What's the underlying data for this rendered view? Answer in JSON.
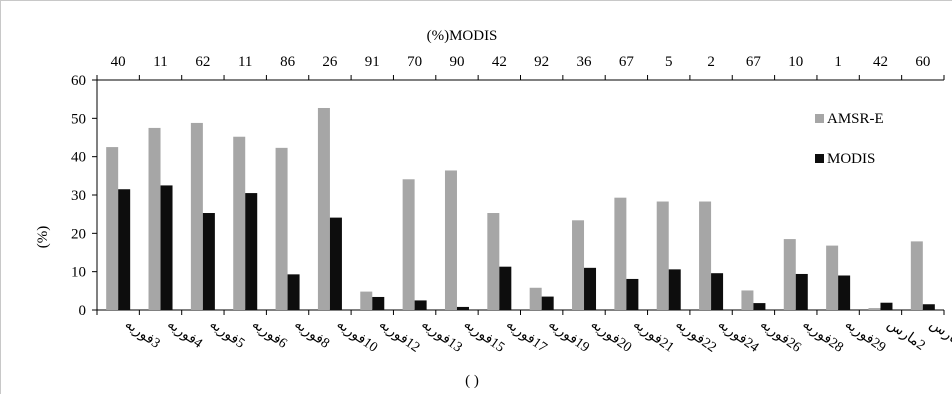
{
  "chart_data": {
    "type": "bar",
    "title": "",
    "xlabel": "(    )",
    "ylabel": "(%)",
    "ylim": [
      0,
      60
    ],
    "yticks": [
      0,
      10,
      20,
      30,
      40,
      50,
      60
    ],
    "secondary_x": {
      "label": "(%)MODIS",
      "values": [
        "40",
        "11",
        "62",
        "11",
        "86",
        "26",
        "91",
        "70",
        "90",
        "42",
        "92",
        "36",
        "67",
        "5",
        "2",
        "67",
        "10",
        "1",
        "42",
        "60"
      ]
    },
    "categories": [
      "3فوريه",
      "4فوريه",
      "5فوريه",
      "6فوريه",
      "8فوريه",
      "10فوريه",
      "12فوريه",
      "13فوريه",
      "15فوريه",
      "17فوريه",
      "19فوريه",
      "20فوريه",
      "21فوريه",
      "22فوريه",
      "24فوريه",
      "26فوريه",
      "28فوريه",
      "29فوريه",
      "2مارس",
      "4مارس"
    ],
    "series": [
      {
        "name": "AMSR-E",
        "color": "#a6a6a6",
        "values": [
          42.5,
          47.5,
          48.8,
          45.2,
          42.3,
          52.7,
          4.8,
          34.1,
          36.4,
          25.3,
          5.8,
          23.4,
          29.3,
          28.3,
          28.3,
          5.1,
          18.5,
          16.8,
          0.5,
          17.9
        ]
      },
      {
        "name": "MODIS",
        "color": "#0d0d0d",
        "values": [
          31.5,
          32.5,
          25.3,
          30.5,
          9.3,
          24.1,
          3.4,
          2.5,
          0.8,
          11.3,
          3.5,
          11.0,
          8.1,
          10.6,
          9.6,
          1.8,
          9.4,
          9.0,
          1.9,
          1.5
        ]
      }
    ],
    "legend": "right",
    "grid": false
  }
}
